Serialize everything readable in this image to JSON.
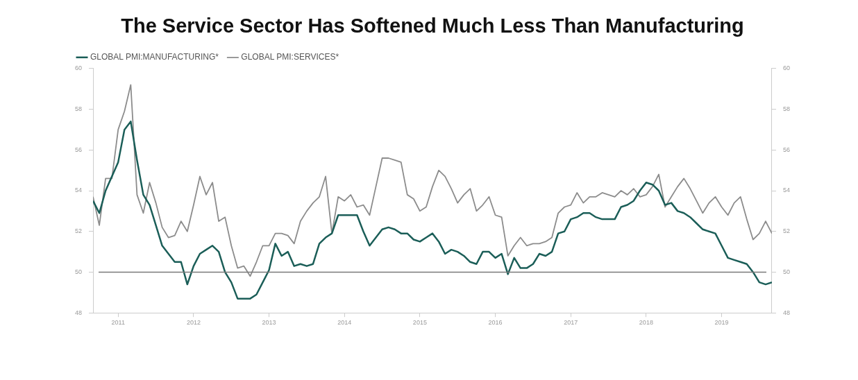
{
  "chart_data": {
    "type": "line",
    "title": "The Service Sector Has Softened Much Less Than Manufacturing",
    "x": [
      "2010-09",
      "2010-10",
      "2010-11",
      "2010-12",
      "2011-01",
      "2011-02",
      "2011-03",
      "2011-04",
      "2011-05",
      "2011-06",
      "2011-07",
      "2011-08",
      "2011-09",
      "2011-10",
      "2011-11",
      "2011-12",
      "2012-01",
      "2012-02",
      "2012-03",
      "2012-04",
      "2012-05",
      "2012-06",
      "2012-07",
      "2012-08",
      "2012-09",
      "2012-10",
      "2012-11",
      "2012-12",
      "2013-01",
      "2013-02",
      "2013-03",
      "2013-04",
      "2013-05",
      "2013-06",
      "2013-07",
      "2013-08",
      "2013-09",
      "2013-10",
      "2013-11",
      "2013-12",
      "2014-01",
      "2014-02",
      "2014-03",
      "2014-04",
      "2014-05",
      "2014-06",
      "2014-07",
      "2014-08",
      "2014-09",
      "2014-10",
      "2014-11",
      "2014-12",
      "2015-01",
      "2015-02",
      "2015-03",
      "2015-04",
      "2015-05",
      "2015-06",
      "2015-07",
      "2015-08",
      "2015-09",
      "2015-10",
      "2015-11",
      "2015-12",
      "2016-01",
      "2016-02",
      "2016-03",
      "2016-04",
      "2016-05",
      "2016-06",
      "2016-07",
      "2016-08",
      "2016-09",
      "2016-10",
      "2016-11",
      "2016-12",
      "2017-01",
      "2017-02",
      "2017-03",
      "2017-04",
      "2017-05",
      "2017-06",
      "2017-07",
      "2017-08",
      "2017-09",
      "2017-10",
      "2017-11",
      "2017-12",
      "2018-01",
      "2018-02",
      "2018-03",
      "2018-04",
      "2018-05",
      "2018-06",
      "2018-07",
      "2018-08",
      "2018-09",
      "2018-10",
      "2018-11",
      "2018-12",
      "2019-01",
      "2019-02",
      "2019-03",
      "2019-04",
      "2019-05",
      "2019-06",
      "2019-07",
      "2019-08",
      "2019-09"
    ],
    "series": [
      {
        "name": "GLOBAL PMI:MANUFACTURING*",
        "color": "#1b5e58",
        "values": [
          53.5,
          52.9,
          54.0,
          54.7,
          55.4,
          57.0,
          57.4,
          55.5,
          53.8,
          53.3,
          52.3,
          51.3,
          50.9,
          50.5,
          50.5,
          49.4,
          50.3,
          50.9,
          51.1,
          51.3,
          51.0,
          50.0,
          49.5,
          48.7,
          48.7,
          48.7,
          48.9,
          49.5,
          50.1,
          51.4,
          50.8,
          51.0,
          50.3,
          50.4,
          50.3,
          50.4,
          51.4,
          51.7,
          51.9,
          52.8,
          52.8,
          52.8,
          52.8,
          52.0,
          51.3,
          51.7,
          52.1,
          52.2,
          52.1,
          51.9,
          51.9,
          51.6,
          51.5,
          51.7,
          51.9,
          51.5,
          50.9,
          51.1,
          51.0,
          50.8,
          50.5,
          50.4,
          51.0,
          51.0,
          50.7,
          50.9,
          49.9,
          50.7,
          50.2,
          50.2,
          50.4,
          50.9,
          50.8,
          51.0,
          51.9,
          52.0,
          52.6,
          52.7,
          52.9,
          52.9,
          52.7,
          52.6,
          52.6,
          52.6,
          53.2,
          53.3,
          53.5,
          54.0,
          54.4,
          54.3,
          54.0,
          53.3,
          53.4,
          53.0,
          52.9,
          52.7,
          52.4,
          52.1,
          52.0,
          51.9,
          51.3,
          50.7,
          50.6,
          50.5,
          50.4,
          50.0,
          49.5,
          49.4,
          49.5
        ]
      },
      {
        "name": "GLOBAL PMI:SERVICES*",
        "color": "#8c8c8c",
        "values": [
          53.7,
          52.3,
          54.6,
          54.6,
          57.0,
          57.9,
          59.2,
          53.8,
          52.9,
          54.4,
          53.4,
          52.2,
          51.7,
          51.8,
          52.5,
          52.0,
          53.3,
          54.7,
          53.8,
          54.4,
          52.5,
          52.7,
          51.3,
          50.2,
          50.3,
          49.8,
          50.5,
          51.3,
          51.3,
          51.9,
          51.9,
          51.8,
          51.4,
          52.5,
          53.0,
          53.4,
          53.7,
          54.7,
          51.9,
          53.7,
          53.5,
          53.8,
          53.2,
          53.3,
          52.8,
          54.2,
          55.6,
          55.6,
          55.5,
          55.4,
          53.8,
          53.6,
          53.0,
          53.2,
          54.2,
          55.0,
          54.7,
          54.1,
          53.4,
          53.8,
          54.1,
          53.0,
          53.3,
          53.7,
          52.8,
          52.7,
          50.8,
          51.3,
          51.7,
          51.3,
          51.4,
          51.4,
          51.5,
          51.7,
          52.9,
          53.2,
          53.3,
          53.9,
          53.4,
          53.7,
          53.7,
          53.9,
          53.8,
          53.7,
          54.0,
          53.8,
          54.1,
          53.7,
          53.8,
          54.2,
          54.8,
          53.2,
          53.7,
          54.2,
          54.6,
          54.1,
          53.5,
          52.9,
          53.4,
          53.7,
          53.2,
          52.8,
          53.4,
          53.7,
          52.6,
          51.6,
          51.9,
          52.5,
          51.9
        ]
      }
    ],
    "xlim": [
      "2010-09",
      "2019-09"
    ],
    "xticks": [
      "2011",
      "2012",
      "2013",
      "2014",
      "2015",
      "2016",
      "2017",
      "2018",
      "2019"
    ],
    "ylim": [
      48,
      60
    ],
    "yticks": [
      48,
      50,
      52,
      54,
      56,
      58,
      60
    ],
    "y2lim": [
      48,
      60
    ],
    "y2ticks": [
      48,
      50,
      52,
      54,
      56,
      58,
      60
    ],
    "ref_lines": [
      {
        "axis": "y",
        "value": 50,
        "color": "#7a7a7a"
      }
    ],
    "legend": "top left",
    "grid": false,
    "marker": "none",
    "line_style": "solid"
  }
}
